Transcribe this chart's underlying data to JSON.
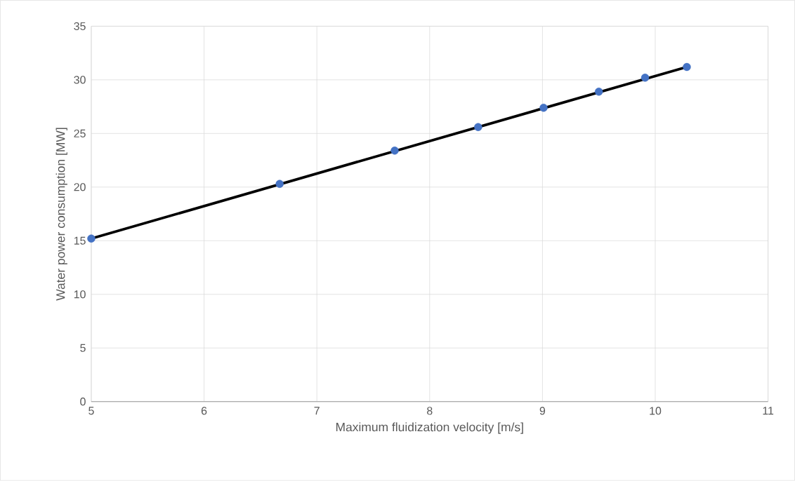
{
  "chart_data": {
    "type": "scatter",
    "xlabel": "Maximum fluidization velocity [m/s]",
    "ylabel": "Water power consumption [MW]",
    "xlim": [
      5,
      11
    ],
    "xticks": [
      5,
      6,
      7,
      8,
      9,
      10,
      11
    ],
    "ylim": [
      0,
      35
    ],
    "yticks": [
      0,
      5,
      10,
      15,
      20,
      25,
      30,
      35
    ],
    "grid": true,
    "series": [
      {
        "color": "#4472c4",
        "marker": "circle",
        "x": [
          5.0,
          6.67,
          7.69,
          8.43,
          9.01,
          9.5,
          9.91,
          10.28
        ],
        "values": [
          15.2,
          20.3,
          23.4,
          25.6,
          27.4,
          28.9,
          30.2,
          31.2
        ]
      },
      {
        "type": "line",
        "color": "#000000",
        "marker": "none",
        "line_style": "solid",
        "x": [
          5.0,
          10.28
        ],
        "values": [
          15.2,
          31.2
        ]
      }
    ]
  }
}
